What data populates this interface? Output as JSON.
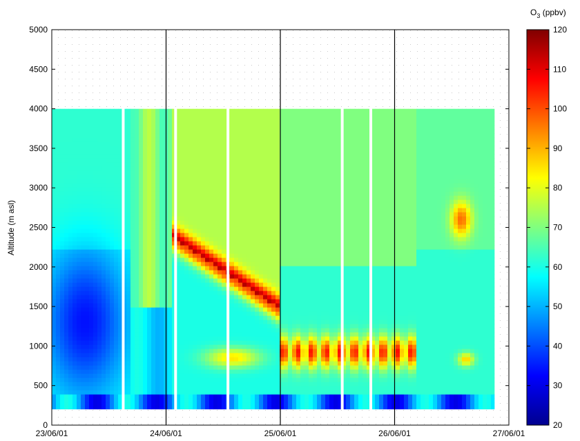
{
  "chart_data": {
    "type": "heatmap",
    "title": "",
    "ylabel": "Altitude (m asl)",
    "xlabel": "",
    "ylim": [
      0,
      5000
    ],
    "y_ticks": [
      0,
      500,
      1000,
      1500,
      2000,
      2500,
      3000,
      3500,
      4000,
      4500,
      5000
    ],
    "x_range": [
      "2001-06-23",
      "2001-06-27"
    ],
    "x_ticks": [
      "23/06/01",
      "24/06/01",
      "25/06/01",
      "26/06/01",
      "27/06/01"
    ],
    "day_separators": [
      "24/06/01",
      "25/06/01",
      "26/06/01"
    ],
    "data_altitude_range": [
      200,
      4000
    ],
    "data_end": "26/06/01 21:00",
    "gaps": [
      "23/06/01 15:00",
      "24/06/01 02:00",
      "24/06/01 13:00",
      "25/06/01 13:00",
      "25/06/01 19:00"
    ],
    "colorbar": {
      "label_main": "O",
      "label_sub": "3",
      "label_unit": " (ppbv)",
      "range": [
        20,
        120
      ],
      "ticks": [
        20,
        30,
        40,
        50,
        60,
        70,
        80,
        90,
        100,
        110,
        120
      ],
      "colormap": "jet"
    },
    "regions": [
      {
        "from": "23/06/01 00:00",
        "to": "23/06/01 16:00",
        "description": "low O3 (30-50 ppbv) from 500 to 2000 m, 50-65 above"
      },
      {
        "from": "24/06/01 02:00",
        "to": "24/06/01 12:00",
        "description": "60-80 ppbv upper layer, 50-60 ppbv below 1500 m"
      },
      {
        "from": "24/06/01 13:00",
        "to": "25/06/01 00:00",
        "description": "layer of 95-115 ppbv descending from 1900 m to 1500 m"
      },
      {
        "from": "25/06/01 13:00",
        "to": "26/06/01 04:00",
        "description": "high O3 (90-120 ppbv) near 800-1000 m"
      },
      {
        "from": "26/06/01 04:00",
        "to": "26/06/01 21:00",
        "description": "55-75 ppbv, local maxima near 2600 m and 800 m"
      }
    ]
  }
}
